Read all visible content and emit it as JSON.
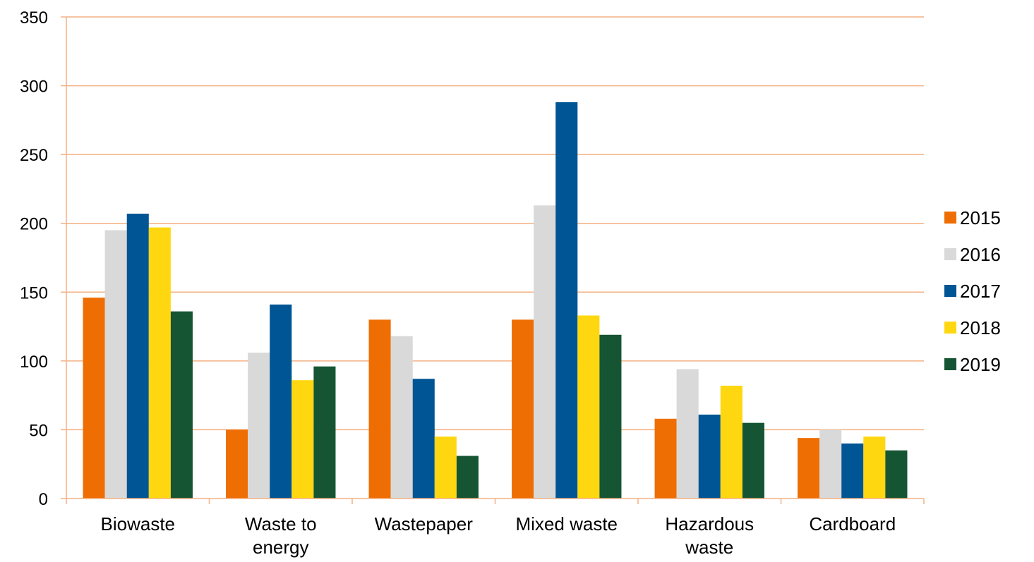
{
  "chart_data": {
    "type": "bar",
    "categories": [
      [
        "Biowaste"
      ],
      [
        "Waste to",
        "energy"
      ],
      [
        "Wastepaper"
      ],
      [
        "Mixed waste"
      ],
      [
        "Hazardous",
        "waste"
      ],
      [
        "Cardboard"
      ]
    ],
    "series": [
      {
        "name": "2015",
        "color": "#ee6e03",
        "values": [
          146,
          50,
          130,
          130,
          58,
          44
        ]
      },
      {
        "name": "2016",
        "color": "#d9d9d9",
        "values": [
          195,
          106,
          118,
          213,
          94,
          50
        ]
      },
      {
        "name": "2017",
        "color": "#005594",
        "values": [
          207,
          141,
          87,
          288,
          61,
          40
        ]
      },
      {
        "name": "2018",
        "color": "#ffd710",
        "values": [
          197,
          86,
          45,
          133,
          82,
          45
        ]
      },
      {
        "name": "2019",
        "color": "#165533",
        "values": [
          136,
          96,
          31,
          119,
          55,
          35
        ]
      }
    ],
    "ylim": [
      0,
      350
    ],
    "yticks": [
      0,
      50,
      100,
      150,
      200,
      250,
      300,
      350
    ],
    "grid": true,
    "gridline_color": "#f4b183",
    "legend_position": "right"
  }
}
